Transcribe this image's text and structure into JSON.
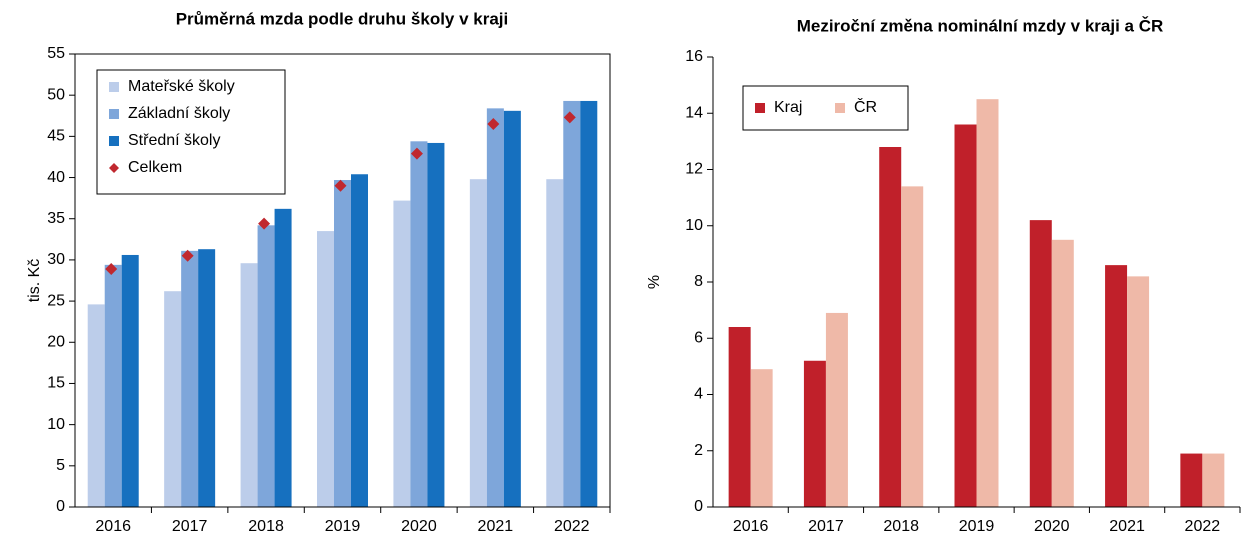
{
  "chart_data": [
    {
      "type": "bar",
      "title": "Průměrná mzda podle druhu školy v kraji",
      "y_label": "tis. Kč",
      "categories": [
        "2016",
        "2017",
        "2018",
        "2019",
        "2020",
        "2021",
        "2022"
      ],
      "series": [
        {
          "name": "Mateřské školy",
          "color": "#bccdea",
          "values": [
            24.6,
            26.2,
            29.6,
            33.5,
            37.2,
            39.8,
            39.8
          ]
        },
        {
          "name": "Základní školy",
          "color": "#7ea6da",
          "values": [
            29.4,
            31.1,
            34.2,
            39.7,
            44.4,
            48.4,
            49.3
          ]
        },
        {
          "name": "Střední školy",
          "color": "#1670bf",
          "values": [
            30.6,
            31.3,
            36.2,
            40.4,
            44.2,
            48.1,
            49.3
          ]
        },
        {
          "name": "Celkem",
          "color": "#c0282f",
          "marker": "diamond",
          "values": [
            28.9,
            30.5,
            34.4,
            39.0,
            42.9,
            46.5,
            47.3
          ]
        }
      ],
      "ylim": [
        0,
        55
      ],
      "yticks": [
        0,
        5,
        10,
        15,
        20,
        25,
        30,
        35,
        40,
        45,
        50,
        55
      ],
      "legend": "upper left",
      "frame": true
    },
    {
      "type": "bar",
      "title": "Meziroční změna nominální mzdy v kraji a ČR",
      "y_label": "%",
      "categories": [
        "2016",
        "2017",
        "2018",
        "2019",
        "2020",
        "2021",
        "2022"
      ],
      "series": [
        {
          "name": "Kraj",
          "color": "#c0202a",
          "values": [
            6.4,
            5.2,
            12.8,
            13.6,
            10.2,
            8.6,
            1.9
          ]
        },
        {
          "name": "ČR",
          "color": "#efb9a8",
          "values": [
            4.9,
            6.9,
            11.4,
            14.5,
            9.5,
            8.2,
            1.9
          ]
        }
      ],
      "ylim": [
        0,
        16
      ],
      "yticks": [
        0,
        2,
        4,
        6,
        8,
        10,
        12,
        14,
        16
      ],
      "legend": "upper left",
      "frame": false
    }
  ]
}
